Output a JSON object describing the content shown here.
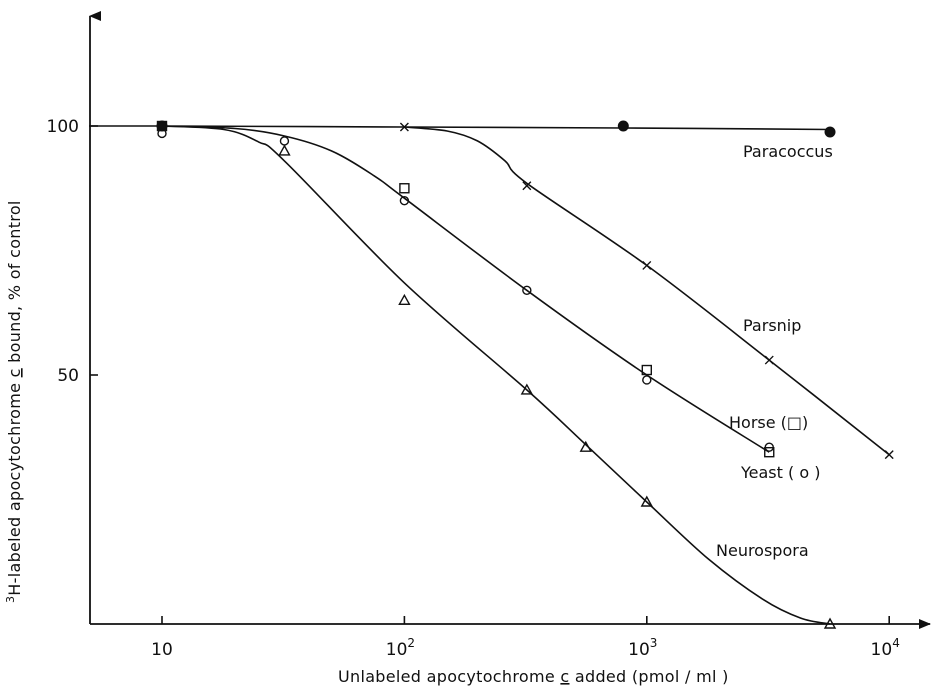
{
  "chart_data": {
    "type": "line",
    "xscale": "log",
    "xlim": [
      5,
      15000
    ],
    "ylim": [
      0,
      120
    ],
    "xlabel_parts": [
      "Unlabeled apocytochrome ",
      "c",
      " added  (pmol / ml )"
    ],
    "ylabel_parts": [
      "3",
      "H-labeled apocytochrome ",
      "c",
      " bound, % of control"
    ],
    "x_ticks": [
      {
        "value": 10,
        "base": "10",
        "exp": ""
      },
      {
        "value": 100,
        "base": "10",
        "exp": "2"
      },
      {
        "value": 1000,
        "base": "10",
        "exp": "3"
      },
      {
        "value": 10000,
        "base": "10",
        "exp": "4"
      }
    ],
    "y_ticks": [
      {
        "value": 50,
        "label": "50"
      },
      {
        "value": 100,
        "label": "100"
      }
    ],
    "series": [
      {
        "name": "Paracoccus",
        "label": "Paracoccus",
        "marker": "filled-circle",
        "points": [
          [
            10,
            100
          ],
          [
            800,
            100
          ],
          [
            5700,
            98.8
          ]
        ],
        "curve": [
          [
            5,
            100
          ],
          [
            10,
            100
          ],
          [
            100,
            99.8
          ],
          [
            800,
            99.6
          ],
          [
            5700,
            99.3
          ]
        ]
      },
      {
        "name": "Parsnip",
        "label": "Parsnip",
        "marker": "cross",
        "points": [
          [
            100,
            99.8
          ],
          [
            320,
            88
          ],
          [
            1000,
            72
          ],
          [
            3200,
            53
          ],
          [
            10000,
            34
          ]
        ],
        "curve": [
          [
            100,
            99.8
          ],
          [
            150,
            99
          ],
          [
            200,
            97
          ],
          [
            260,
            93
          ],
          [
            320,
            88.5
          ],
          [
            1000,
            72
          ],
          [
            3200,
            53
          ],
          [
            10000,
            34
          ]
        ]
      },
      {
        "name": "Horse",
        "label": "Horse (□)",
        "marker": "square",
        "points": [
          [
            10,
            100
          ],
          [
            100,
            87.5
          ],
          [
            1000,
            51
          ],
          [
            3200,
            34.5
          ]
        ]
      },
      {
        "name": "Yeast",
        "label": "Yeast ( o )",
        "marker": "open-circle",
        "points": [
          [
            10,
            98.5
          ],
          [
            32,
            97
          ],
          [
            100,
            85
          ],
          [
            320,
            67
          ],
          [
            1000,
            49
          ],
          [
            3200,
            35.5
          ]
        ],
        "curve": [
          [
            10,
            100
          ],
          [
            20,
            99.5
          ],
          [
            32,
            98
          ],
          [
            50,
            95
          ],
          [
            75,
            90
          ],
          [
            100,
            85.5
          ],
          [
            320,
            67
          ],
          [
            1000,
            50
          ],
          [
            3200,
            34.5
          ]
        ]
      },
      {
        "name": "Neurospora",
        "label": "Neurospora",
        "marker": "triangle",
        "points": [
          [
            32,
            95
          ],
          [
            100,
            65
          ],
          [
            320,
            47
          ],
          [
            560,
            35.5
          ],
          [
            1000,
            24.5
          ],
          [
            5700,
            0
          ]
        ],
        "curve": [
          [
            10,
            100
          ],
          [
            18,
            99.3
          ],
          [
            25,
            96.8
          ],
          [
            32,
            93
          ],
          [
            100,
            68.5
          ],
          [
            320,
            47
          ],
          [
            560,
            36
          ],
          [
            1000,
            24.5
          ],
          [
            1800,
            13
          ],
          [
            3000,
            5
          ],
          [
            4300,
            1.2
          ],
          [
            5700,
            0
          ]
        ]
      }
    ]
  }
}
